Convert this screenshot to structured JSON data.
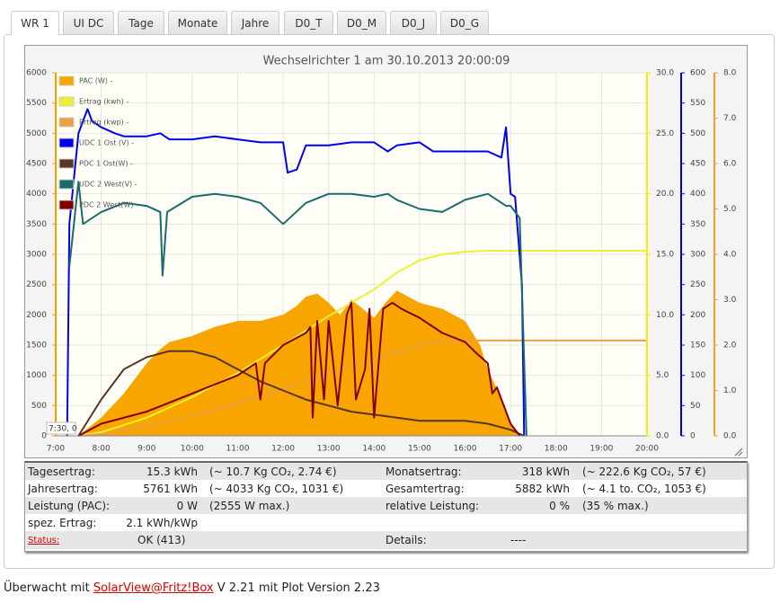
{
  "tabs": [
    "WR 1",
    "UI DC",
    "Tage",
    "Monate",
    "Jahre",
    "D0_T",
    "D0_M",
    "D0_J",
    "D0_G"
  ],
  "chart_data": {
    "type": "line",
    "title": "Wechselrichter 1 am 30.10.2013 20:00:09",
    "cursor_label": "7:30, 0",
    "grid": true,
    "xlim": [
      7,
      20
    ],
    "xticks": [
      {
        "value": 7,
        "label": "7:00"
      },
      {
        "value": 8,
        "label": "8:00"
      },
      {
        "value": 9,
        "label": "9:00"
      },
      {
        "value": 10,
        "label": "10:00"
      },
      {
        "value": 11,
        "label": "11:00"
      },
      {
        "value": 12,
        "label": "12:00"
      },
      {
        "value": 13,
        "label": "13:00"
      },
      {
        "value": 14,
        "label": "14:00"
      },
      {
        "value": 15,
        "label": "15:00"
      },
      {
        "value": 16,
        "label": "16:00"
      },
      {
        "value": 17,
        "label": "17:00"
      },
      {
        "value": 18,
        "label": "18:00"
      },
      {
        "value": 19,
        "label": "19:00"
      },
      {
        "value": 20,
        "label": "20:00"
      }
    ],
    "ylim": [
      0,
      6000
    ],
    "yticks": [
      0,
      500,
      1000,
      1500,
      2000,
      2500,
      3000,
      3500,
      4000,
      4500,
      5000,
      5500,
      6000
    ],
    "ycolor": "#f5a000",
    "y2lim": [
      0,
      30
    ],
    "y2ticks": [
      {
        "value": 0,
        "label": "0.0"
      },
      {
        "value": 5,
        "label": "5.0"
      },
      {
        "value": 10,
        "label": "10.0"
      },
      {
        "value": 15,
        "label": "15.0"
      },
      {
        "value": 20,
        "label": "20.0"
      },
      {
        "value": 25,
        "label": "25.0"
      },
      {
        "value": 30,
        "label": "30.0"
      }
    ],
    "y2color": "#f0f000",
    "y3lim": [
      0,
      600
    ],
    "y3ticks": [
      0,
      50,
      100,
      150,
      200,
      250,
      300,
      350,
      400,
      450,
      500,
      550,
      600
    ],
    "y3color": "#0000cc",
    "y4lim": [
      0,
      8
    ],
    "y4ticks": [
      {
        "value": 0,
        "label": "0.0"
      },
      {
        "value": 1,
        "label": "1.0"
      },
      {
        "value": 2,
        "label": "2.0"
      },
      {
        "value": 3,
        "label": "3.0"
      },
      {
        "value": 4,
        "label": "4.0"
      },
      {
        "value": 5,
        "label": "5.0"
      },
      {
        "value": 6,
        "label": "6.0"
      },
      {
        "value": 7,
        "label": "7.0"
      },
      {
        "value": 8,
        "label": "8.0"
      }
    ],
    "y4color": "#f0a030",
    "series": [
      {
        "name": "PAC (W) -",
        "color": "#f8a500",
        "axis": "y",
        "fill": true,
        "x": [
          7.5,
          8,
          8.5,
          9,
          9.25,
          9.5,
          10,
          10.5,
          11,
          11.5,
          12,
          12.3,
          12.5,
          12.75,
          13,
          13.25,
          13.5,
          14,
          14.25,
          14.5,
          15,
          15.5,
          16,
          16.33,
          16.5,
          16.75,
          17,
          17.25
        ],
        "values": [
          0,
          300,
          700,
          1200,
          1400,
          1550,
          1650,
          1800,
          1900,
          1900,
          2000,
          2150,
          2300,
          2350,
          2200,
          2000,
          2250,
          1950,
          2200,
          2400,
          2200,
          2100,
          1900,
          1500,
          1100,
          700,
          200,
          0
        ]
      },
      {
        "name": "Ertrag (kwh) -",
        "color": "#f0f030",
        "axis": "y2",
        "x": [
          7.5,
          8,
          9,
          10,
          11,
          12,
          13,
          14,
          14.5,
          15,
          15.5,
          16,
          16.5,
          17,
          20
        ],
        "values": [
          0,
          0.3,
          1.5,
          3.2,
          5.2,
          7.5,
          9.9,
          12.1,
          13.5,
          14.5,
          15,
          15.2,
          15.3,
          15.3,
          15.3
        ]
      },
      {
        "name": "Ertrag (kwp) -",
        "color": "#e8a040",
        "axis": "y4",
        "x": [
          7.5,
          8,
          9,
          10,
          11,
          12,
          13,
          14,
          15,
          15.5,
          16,
          20
        ],
        "values": [
          0,
          0.04,
          0.21,
          0.44,
          0.72,
          1.04,
          1.38,
          1.68,
          2.0,
          2.08,
          2.1,
          2.1
        ]
      },
      {
        "name": "UDC 1 Ost (V) -",
        "color": "#0000ee",
        "axis": "y3",
        "x": [
          7.25,
          7.3,
          7.5,
          7.7,
          7.8,
          8,
          8.3,
          8.5,
          9,
          9.3,
          9.5,
          10,
          10.5,
          11,
          11.5,
          12,
          12.1,
          12.3,
          12.5,
          13,
          13.5,
          14,
          14.3,
          14.5,
          15,
          15.3,
          15.5,
          16,
          16.5,
          16.8,
          16.9,
          17,
          17.1,
          17.25,
          17.3
        ],
        "values": [
          0,
          350,
          500,
          540,
          520,
          510,
          500,
          495,
          495,
          500,
          490,
          490,
          495,
          490,
          485,
          485,
          435,
          440,
          480,
          480,
          485,
          485,
          470,
          480,
          485,
          470,
          470,
          470,
          470,
          460,
          510,
          400,
          395,
          250,
          0
        ]
      },
      {
        "name": "PDC 1 Ost(W) -",
        "color": "#5a3522",
        "axis": "y",
        "x": [
          7.5,
          8,
          8.5,
          9,
          9.5,
          10,
          10.5,
          11,
          11.5,
          12,
          12.5,
          13,
          13.5,
          14,
          14.5,
          15,
          15.5,
          16,
          16.5,
          17,
          17.3
        ],
        "values": [
          0,
          600,
          1100,
          1300,
          1400,
          1400,
          1300,
          1100,
          900,
          750,
          600,
          500,
          400,
          350,
          300,
          250,
          250,
          250,
          200,
          100,
          0
        ]
      },
      {
        "name": "UDC 2 West(V) -",
        "color": "#1a6b6b",
        "axis": "y3",
        "x": [
          7.3,
          7.5,
          7.6,
          8,
          8.5,
          9,
          9.3,
          9.35,
          9.45,
          10,
          10.5,
          11,
          11.5,
          12,
          12.5,
          13,
          13.5,
          14,
          14.3,
          14.5,
          15,
          15.5,
          16,
          16.5,
          16.9,
          17,
          17.2,
          17.35
        ],
        "values": [
          280,
          420,
          350,
          370,
          385,
          380,
          370,
          265,
          370,
          395,
          400,
          395,
          385,
          350,
          385,
          400,
          400,
          395,
          400,
          390,
          375,
          370,
          390,
          400,
          380,
          380,
          360,
          0
        ]
      },
      {
        "name": "PDC 2 West(W)",
        "color": "#800000",
        "axis": "y",
        "x": [
          7.5,
          8,
          9,
          10,
          11,
          11.4,
          11.5,
          11.6,
          12,
          12.5,
          12.6,
          12.65,
          12.75,
          12.9,
          13,
          13.2,
          13.4,
          13.5,
          13.6,
          13.8,
          13.9,
          14,
          14.2,
          14.4,
          14.6,
          15,
          15.5,
          16,
          16.2,
          16.5,
          16.6,
          16.7,
          17,
          17.2
        ],
        "values": [
          0,
          200,
          400,
          700,
          1000,
          1200,
          600,
          1200,
          1500,
          1700,
          1800,
          300,
          1900,
          600,
          1900,
          500,
          2000,
          2200,
          600,
          1100,
          2100,
          300,
          2100,
          2200,
          2100,
          1950,
          1700,
          1550,
          1400,
          1200,
          700,
          800,
          200,
          0
        ]
      }
    ]
  },
  "info": {
    "rows": [
      [
        "Tagesertrag:",
        "15.3 kWh",
        "(~ 10.7 Kg CO₂, 2.74 €)",
        "Monatsertrag:",
        "318 kWh",
        "(~ 222.6 Kg CO₂, 57 €)"
      ],
      [
        "Jahresertrag:",
        "5761 kWh",
        "(~ 4033 Kg CO₂, 1031 €)",
        "Gesamtertrag:",
        "5882 kWh",
        "(~ 4.1 to. CO₂, 1053 €)"
      ],
      [
        "Leistung (PAC):",
        "0 W",
        "(2555 W max.)",
        "relative Leistung:",
        "0 %",
        "(35 % max.)"
      ],
      [
        "spez. Ertrag:",
        "2.1 kWh/kWp"
      ],
      [
        "Status:",
        "OK (413)",
        "Details:",
        "----"
      ]
    ]
  },
  "footer": {
    "prefix": "Überwacht mit",
    "link": "SolarView@Fritz!Box",
    "suffix": "V 2.21 mit Plot Version 2.23"
  }
}
